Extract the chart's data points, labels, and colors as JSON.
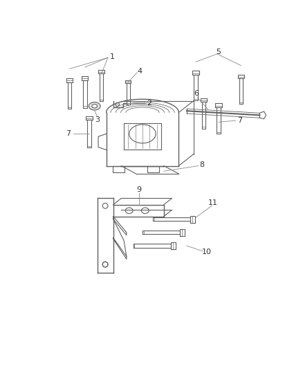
{
  "background_color": "#ffffff",
  "line_color": "#606060",
  "label_color": "#333333",
  "callout_color": "#888888",
  "figsize": [
    4.38,
    5.33
  ],
  "dpi": 100,
  "bolt_color": "#707070",
  "shade_color": "#d8d8d8",
  "shade_dark": "#b0b0b0"
}
